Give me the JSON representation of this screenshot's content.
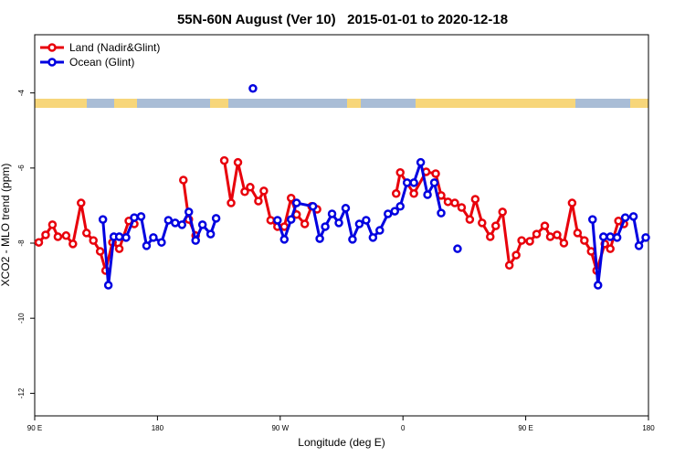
{
  "chart_data": {
    "type": "line",
    "title": "55N-60N August (Ver 10)   2015-01-01 to 2020-12-18",
    "x_label": "Longitude (deg E)",
    "y_label": "XCO2 - MLO trend (ppm)",
    "xlim": [
      90,
      540
    ],
    "xticks": [
      {
        "value": 90,
        "label": "90 E"
      },
      180,
      {
        "value": 270,
        "label": "90 W"
      },
      {
        "value": 360,
        "label": "0"
      },
      {
        "value": 450,
        "label": "90 E"
      },
      {
        "value": 540,
        "label": "180"
      }
    ],
    "ylim": [
      -12.6,
      -2.45
    ],
    "yticks": [
      -4,
      -6,
      -8,
      -10,
      -12
    ],
    "legend": "top-left",
    "series": [
      {
        "name": "Land (Nadir&Glint)",
        "color": "#e8000b",
        "x": [
          93,
          98,
          103,
          107,
          113,
          118,
          124,
          128,
          133,
          138,
          142,
          147,
          152,
          159,
          163,
          null,
          199,
          203,
          208,
          null,
          229,
          234,
          239,
          244,
          248,
          254,
          258,
          263,
          268,
          273,
          278,
          282,
          288,
          293,
          297,
          null,
          355,
          358,
          368,
          377,
          384,
          388,
          393,
          398,
          403,
          409,
          413,
          418,
          424,
          428,
          433,
          438,
          443,
          447,
          453,
          458,
          464,
          468,
          473,
          478,
          484,
          488,
          493,
          498,
          502,
          508,
          512,
          518,
          522
        ],
        "values": [
          -7.98,
          -7.78,
          -7.51,
          -7.83,
          -7.8,
          -8.02,
          -6.93,
          -7.73,
          -7.93,
          -8.22,
          -8.73,
          -7.98,
          -8.15,
          -7.41,
          -7.49,
          null,
          -6.32,
          -7.37,
          -7.8,
          null,
          -5.8,
          -6.93,
          -5.85,
          -6.63,
          -6.51,
          -6.88,
          -6.61,
          -7.39,
          -7.56,
          -7.56,
          -6.8,
          -7.24,
          -7.49,
          -7.02,
          -7.1,
          null,
          -6.68,
          -6.12,
          -6.68,
          -6.1,
          -6.15,
          -6.73,
          -6.9,
          -6.93,
          -7.05,
          -7.37,
          -6.83,
          -7.46,
          -7.83,
          -7.54,
          -7.17,
          -8.59,
          -8.32,
          -7.93,
          -7.95,
          -7.76,
          -7.54,
          -7.83,
          -7.78,
          -8,
          -6.93,
          -7.73,
          -7.93,
          -8.22,
          -8.73,
          -8.02,
          -8.15,
          -7.41,
          -7.49
        ]
      },
      {
        "name": "Ocean (Glint)",
        "color": "#0000e0",
        "x": [
          140,
          144,
          148,
          152,
          157,
          163,
          168,
          172,
          177,
          183,
          188,
          193,
          198,
          203,
          208,
          213,
          219,
          223,
          null,
          250,
          null,
          268,
          273,
          278,
          282,
          294,
          299,
          303,
          308,
          313,
          318,
          323,
          328,
          333,
          338,
          343,
          349,
          354,
          358,
          363,
          368,
          373,
          378,
          383,
          388,
          null,
          400,
          null,
          499,
          503,
          507,
          512,
          517,
          523,
          529,
          533,
          538
        ],
        "values": [
          -7.37,
          -9.12,
          -7.83,
          -7.83,
          -7.85,
          -7.32,
          -7.29,
          -8.07,
          -7.85,
          -7.98,
          -7.39,
          -7.46,
          -7.51,
          -7.17,
          -7.93,
          -7.51,
          -7.76,
          -7.34,
          null,
          -3.88,
          null,
          -7.39,
          -7.9,
          -7.37,
          -6.93,
          -7.02,
          -7.88,
          -7.56,
          -7.22,
          -7.46,
          -7.07,
          -7.9,
          -7.49,
          -7.39,
          -7.85,
          -7.66,
          -7.22,
          -7.15,
          -7.02,
          -6.39,
          -6.39,
          -5.85,
          -6.71,
          -6.39,
          -7.2,
          null,
          -8.15,
          null,
          -7.37,
          -9.12,
          -7.83,
          -7.83,
          -7.85,
          -7.32,
          -7.29,
          -8.07,
          -7.85
        ]
      }
    ]
  }
}
